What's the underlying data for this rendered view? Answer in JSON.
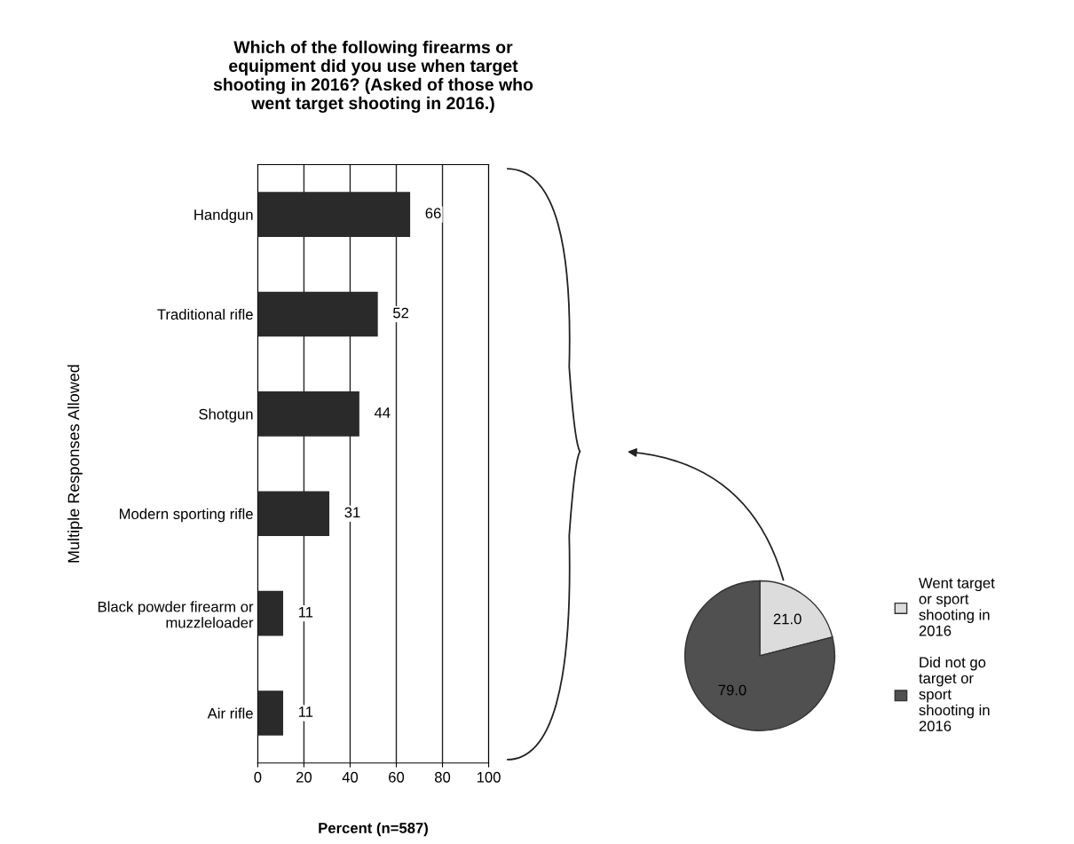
{
  "chart_data": [
    {
      "type": "bar",
      "orientation": "horizontal",
      "title": "Which of the following firearms or equipment did you use when target shooting in 2016? (Asked of those who went target shooting in 2016.)",
      "xlabel": "Percent (n=587)",
      "ylabel": "Multiple Responses Allowed",
      "categories": [
        "Handgun",
        "Traditional rifle",
        "Shotgun",
        "Modern sporting rifle",
        "Black powder firearm or muzzleloader",
        "Air rifle"
      ],
      "values": [
        66,
        52,
        44,
        31,
        11,
        11
      ],
      "color": "#2a2a2a",
      "data_labels": true,
      "xlim": [
        0,
        100
      ],
      "xticks": [
        0,
        20,
        40,
        60,
        80,
        100
      ],
      "grid": "x"
    },
    {
      "type": "pie",
      "categories": [
        "Went target or sport shooting in 2016",
        "Did not go target or sport shooting in 2016"
      ],
      "values": [
        21.0,
        79.0
      ],
      "value_labels": [
        "21.0",
        "79.0"
      ],
      "colors": [
        "#dcdcdc",
        "#505050"
      ],
      "legend": "right"
    }
  ]
}
